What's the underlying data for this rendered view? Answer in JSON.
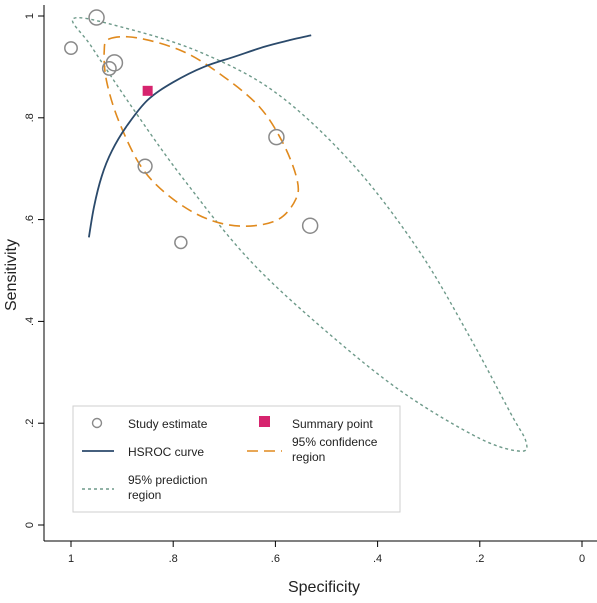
{
  "chart_data": {
    "type": "scatter",
    "xlabel": "Specificity",
    "ylabel": "Sensitivity",
    "x_reversed": true,
    "xlim": [
      1.0,
      0.0
    ],
    "ylim": [
      0.0,
      1.0
    ],
    "xticks": [
      {
        "value": 1.0,
        "label": "1"
      },
      {
        "value": 0.8,
        "label": ".8"
      },
      {
        "value": 0.6,
        "label": ".6"
      },
      {
        "value": 0.4,
        "label": ".4"
      },
      {
        "value": 0.2,
        "label": ".2"
      },
      {
        "value": 0.0,
        "label": "0"
      }
    ],
    "yticks": [
      {
        "value": 0.0,
        "label": "0"
      },
      {
        "value": 0.2,
        "label": ".2"
      },
      {
        "value": 0.4,
        "label": ".4"
      },
      {
        "value": 0.6,
        "label": ".6"
      },
      {
        "value": 0.8,
        "label": ".8"
      },
      {
        "value": 1.0,
        "label": "1"
      }
    ],
    "grid": false,
    "legend_position": "bottom-left",
    "colors": {
      "study": "#8a8a8a",
      "summary": "#d6246e",
      "hsroc": "#2b4a6b",
      "confidence": "#e08a1e",
      "prediction": "#6e9a8a"
    },
    "study_estimates": [
      {
        "spec": 0.95,
        "sens": 0.997,
        "weight": 0.9
      },
      {
        "spec": 1.0,
        "sens": 0.937,
        "weight": 0.6
      },
      {
        "spec": 0.915,
        "sens": 0.908,
        "weight": 1.0
      },
      {
        "spec": 0.925,
        "sens": 0.897,
        "weight": 0.7
      },
      {
        "spec": 0.855,
        "sens": 0.705,
        "weight": 0.75
      },
      {
        "spec": 0.785,
        "sens": 0.555,
        "weight": 0.55
      },
      {
        "spec": 0.598,
        "sens": 0.762,
        "weight": 0.9
      },
      {
        "spec": 0.532,
        "sens": 0.588,
        "weight": 0.9
      }
    ],
    "summary_point": {
      "spec": 0.85,
      "sens": 0.853
    },
    "hsroc_curve": [
      {
        "spec": 0.965,
        "sens": 0.565
      },
      {
        "spec": 0.955,
        "sens": 0.625
      },
      {
        "spec": 0.94,
        "sens": 0.685
      },
      {
        "spec": 0.92,
        "sens": 0.735
      },
      {
        "spec": 0.89,
        "sens": 0.785
      },
      {
        "spec": 0.85,
        "sens": 0.835
      },
      {
        "spec": 0.8,
        "sens": 0.87
      },
      {
        "spec": 0.74,
        "sens": 0.9
      },
      {
        "spec": 0.68,
        "sens": 0.92
      },
      {
        "spec": 0.62,
        "sens": 0.94
      },
      {
        "spec": 0.57,
        "sens": 0.953
      },
      {
        "spec": 0.53,
        "sens": 0.962
      }
    ],
    "confidence_region": [
      {
        "spec": 0.925,
        "sens": 0.955
      },
      {
        "spec": 0.87,
        "sens": 0.957
      },
      {
        "spec": 0.78,
        "sens": 0.93
      },
      {
        "spec": 0.7,
        "sens": 0.88
      },
      {
        "spec": 0.63,
        "sens": 0.82
      },
      {
        "spec": 0.585,
        "sens": 0.75
      },
      {
        "spec": 0.558,
        "sens": 0.68
      },
      {
        "spec": 0.56,
        "sens": 0.64
      },
      {
        "spec": 0.595,
        "sens": 0.6
      },
      {
        "spec": 0.66,
        "sens": 0.587
      },
      {
        "spec": 0.73,
        "sens": 0.6
      },
      {
        "spec": 0.8,
        "sens": 0.64
      },
      {
        "spec": 0.86,
        "sens": 0.7
      },
      {
        "spec": 0.905,
        "sens": 0.79
      },
      {
        "spec": 0.93,
        "sens": 0.87
      },
      {
        "spec": 0.935,
        "sens": 0.93
      },
      {
        "spec": 0.925,
        "sens": 0.955
      }
    ],
    "prediction_region": [
      {
        "spec": 0.995,
        "sens": 0.995
      },
      {
        "spec": 0.9,
        "sens": 0.978
      },
      {
        "spec": 0.75,
        "sens": 0.93
      },
      {
        "spec": 0.6,
        "sens": 0.85
      },
      {
        "spec": 0.45,
        "sens": 0.71
      },
      {
        "spec": 0.32,
        "sens": 0.54
      },
      {
        "spec": 0.22,
        "sens": 0.37
      },
      {
        "spec": 0.14,
        "sens": 0.22
      },
      {
        "spec": 0.11,
        "sens": 0.165
      },
      {
        "spec": 0.12,
        "sens": 0.145
      },
      {
        "spec": 0.2,
        "sens": 0.17
      },
      {
        "spec": 0.35,
        "sens": 0.26
      },
      {
        "spec": 0.5,
        "sens": 0.38
      },
      {
        "spec": 0.65,
        "sens": 0.52
      },
      {
        "spec": 0.78,
        "sens": 0.68
      },
      {
        "spec": 0.88,
        "sens": 0.82
      },
      {
        "spec": 0.96,
        "sens": 0.94
      },
      {
        "spec": 0.995,
        "sens": 0.995
      }
    ]
  },
  "legend": {
    "study_estimate": "Study estimate",
    "summary_point": "Summary point",
    "hsroc_curve": "HSROC curve",
    "confidence_line1": "95% confidence",
    "confidence_line2": "region",
    "prediction_line1": "95% prediction",
    "prediction_line2": "region"
  }
}
